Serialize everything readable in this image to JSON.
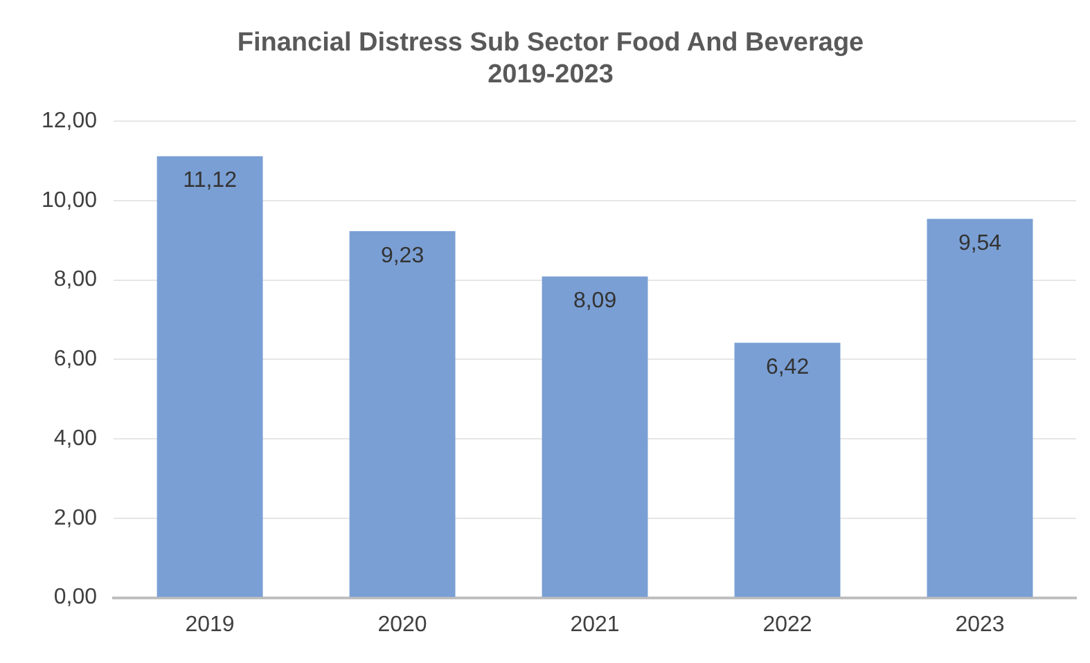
{
  "chart_data": {
    "type": "bar",
    "title": [
      "Financial Distress Sub Sector Food And Beverage",
      "2019-2023"
    ],
    "categories": [
      "2019",
      "2020",
      "2021",
      "2022",
      "2023"
    ],
    "values": [
      11.12,
      9.23,
      8.09,
      6.42,
      9.54
    ],
    "value_labels": [
      "11,12",
      "9,23",
      "8,09",
      "6,42",
      "9,54"
    ],
    "color": "#7a9fd4",
    "ylim": [
      0,
      12
    ],
    "yticks": [
      {
        "value": 0,
        "label": "0,00"
      },
      {
        "value": 2,
        "label": "2,00"
      },
      {
        "value": 4,
        "label": "4,00"
      },
      {
        "value": 6,
        "label": "6,00"
      },
      {
        "value": 8,
        "label": "8,00"
      },
      {
        "value": 10,
        "label": "10,00"
      },
      {
        "value": 12,
        "label": "12,00"
      }
    ],
    "grid": "y"
  }
}
